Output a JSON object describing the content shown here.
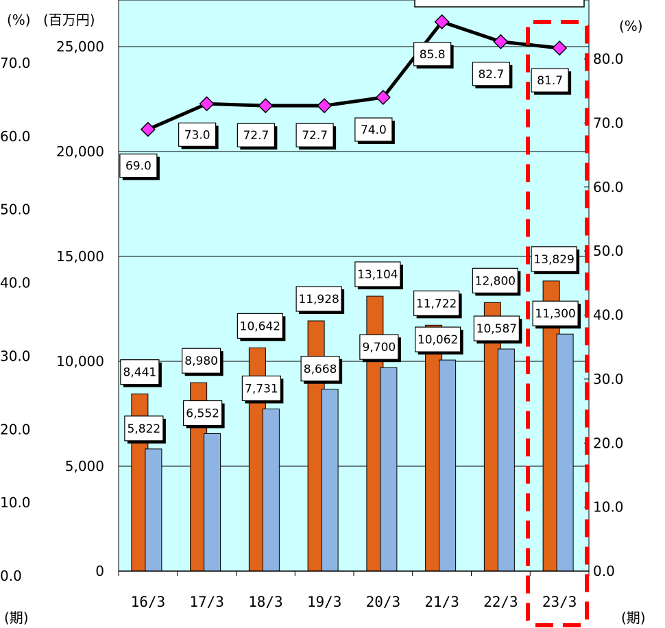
{
  "chart_data": {
    "type": "bar+line",
    "categories": [
      "16/3",
      "17/3",
      "18/3",
      "19/3",
      "20/3",
      "21/3",
      "22/3",
      "23/3"
    ],
    "series": [
      {
        "kind": "bar",
        "axis": "yen",
        "color": "#E0641A",
        "values": [
          8441,
          8980,
          10642,
          11928,
          13104,
          11722,
          12800,
          13829
        ],
        "labels": [
          "8,441",
          "8,980",
          "10,642",
          "11,928",
          "13,104",
          "11,722",
          "12,800",
          "13,829"
        ]
      },
      {
        "kind": "bar",
        "axis": "yen",
        "color": "#8EB4E3",
        "values": [
          5822,
          6552,
          7731,
          8668,
          9700,
          10062,
          10587,
          11300
        ],
        "labels": [
          "5,822",
          "6,552",
          "7,731",
          "8,668",
          "9,700",
          "10,062",
          "10,587",
          "11,300"
        ]
      },
      {
        "kind": "line",
        "axis": "pct_right",
        "color": "#000000",
        "marker_color": "#FF33FF",
        "values": [
          69.0,
          73.0,
          72.7,
          72.7,
          74.0,
          85.8,
          82.7,
          81.7
        ],
        "labels": [
          "69.0",
          "73.0",
          "72.7",
          "72.7",
          "74.0",
          "85.8",
          "82.7",
          "81.7"
        ]
      }
    ],
    "axes": {
      "yen": {
        "unit": "(百万円)",
        "min": 0,
        "max": 25000,
        "ticks": [
          "0",
          "5,000",
          "10,000",
          "15,000",
          "20,000",
          "25,000"
        ]
      },
      "pct_left": {
        "unit": "(%)",
        "min": 0,
        "max": 70,
        "ticks": [
          "0.0",
          "10.0",
          "20.0",
          "30.0",
          "40.0",
          "50.0",
          "60.0",
          "70.0"
        ]
      },
      "pct_right": {
        "unit": "(%)",
        "min": 0,
        "max": 80,
        "ticks": [
          "0.0",
          "10.0",
          "20.0",
          "30.0",
          "40.0",
          "50.0",
          "60.0",
          "70.0",
          "80.0"
        ]
      }
    },
    "period_unit": "(期)",
    "grid": true,
    "highlight_category": "23/3",
    "plot_background": "#CCFFFF",
    "highlight_color": "#FF0000"
  }
}
